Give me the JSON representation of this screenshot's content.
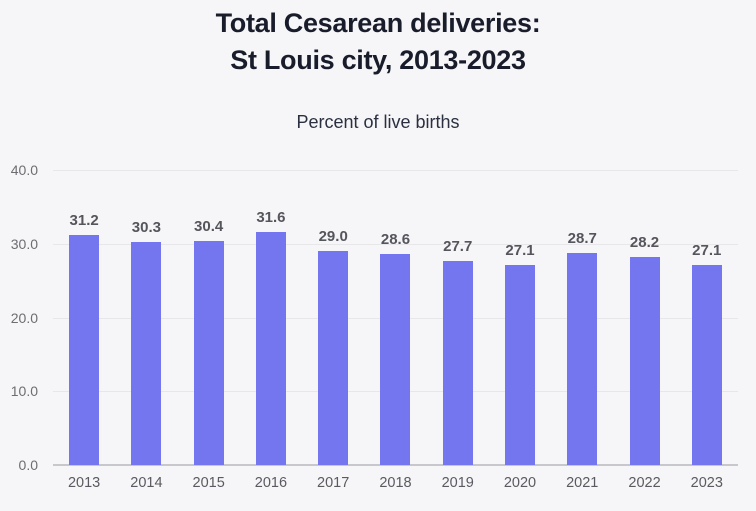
{
  "header": {
    "title_line1": "Total Cesarean deliveries:",
    "title_line2": "St Louis city, 2013-2023",
    "subtitle": "Percent of live births"
  },
  "colors": {
    "background": "#f6f6f8",
    "bar": "#7476f0",
    "title_text": "#191d2b",
    "gridline": "#e7e7ea",
    "axis_baseline": "#c7c7cc",
    "value_label_text": "#55565c",
    "tick_text": "#6d6d72"
  },
  "chart_data": {
    "type": "bar",
    "title": "Total Cesarean deliveries: St Louis city, 2013-2023",
    "subtitle": "Percent of live births",
    "xlabel": "",
    "ylabel": "Percent of live births",
    "categories": [
      "2013",
      "2014",
      "2015",
      "2016",
      "2017",
      "2018",
      "2019",
      "2020",
      "2021",
      "2022",
      "2023"
    ],
    "values": [
      31.2,
      30.3,
      30.4,
      31.6,
      29.0,
      28.6,
      27.7,
      27.1,
      28.7,
      28.2,
      27.1
    ],
    "value_labels": [
      "31.2",
      "30.3",
      "30.4",
      "31.6",
      "29.0",
      "28.6",
      "27.7",
      "27.1",
      "28.7",
      "28.2",
      "27.1"
    ],
    "ylim": [
      0,
      40
    ],
    "yticks": [
      0,
      10,
      20,
      30,
      40
    ],
    "ytick_labels": [
      "0.0",
      "10.0",
      "20.0",
      "30.0",
      "40.0"
    ],
    "grid": true,
    "legend": "none"
  }
}
